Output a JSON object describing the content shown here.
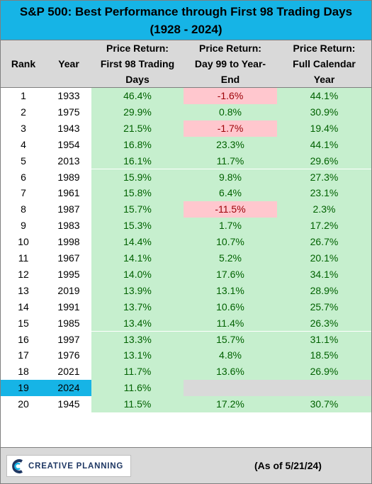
{
  "title_line1": "S&P 500: Best Performance through First 98 Trading Days",
  "title_line2": "(1928 - 2024)",
  "headers": {
    "rank": "Rank",
    "year": "Year",
    "p1": [
      "Price Return:",
      "First 98 Trading",
      "Days"
    ],
    "p2": [
      "Price Return:",
      "Day 99 to Year-",
      "End"
    ],
    "p3": [
      "Price Return:",
      "Full Calendar",
      "Year"
    ]
  },
  "colors": {
    "title_bg": "#16b4e6",
    "header_bg": "#d9d9d9",
    "positive_bg": "#c6efce",
    "positive_text": "#006100",
    "negative_bg": "#ffc7ce",
    "negative_text": "#9c0006",
    "highlight": "#16b4e6"
  },
  "chart_data": {
    "type": "table",
    "title": "S&P 500: Best Performance through First 98 Trading Days (1928 - 2024)",
    "columns": [
      "Rank",
      "Year",
      "Price Return: First 98 Trading Days",
      "Price Return: Day 99 to Year-End",
      "Price Return: Full Calendar Year"
    ],
    "rows": [
      {
        "rank": "1",
        "year": "1933",
        "p1": "46.4%",
        "p2": "-1.6%",
        "p3": "44.1%"
      },
      {
        "rank": "2",
        "year": "1975",
        "p1": "29.9%",
        "p2": "0.8%",
        "p3": "30.9%"
      },
      {
        "rank": "3",
        "year": "1943",
        "p1": "21.5%",
        "p2": "-1.7%",
        "p3": "19.4%"
      },
      {
        "rank": "4",
        "year": "1954",
        "p1": "16.8%",
        "p2": "23.3%",
        "p3": "44.1%"
      },
      {
        "rank": "5",
        "year": "2013",
        "p1": "16.1%",
        "p2": "11.7%",
        "p3": "29.6%"
      },
      {
        "rank": "6",
        "year": "1989",
        "p1": "15.9%",
        "p2": "9.8%",
        "p3": "27.3%"
      },
      {
        "rank": "7",
        "year": "1961",
        "p1": "15.8%",
        "p2": "6.4%",
        "p3": "23.1%"
      },
      {
        "rank": "8",
        "year": "1987",
        "p1": "15.7%",
        "p2": "-11.5%",
        "p3": "2.3%"
      },
      {
        "rank": "9",
        "year": "1983",
        "p1": "15.3%",
        "p2": "1.7%",
        "p3": "17.2%"
      },
      {
        "rank": "10",
        "year": "1998",
        "p1": "14.4%",
        "p2": "10.7%",
        "p3": "26.7%"
      },
      {
        "rank": "11",
        "year": "1967",
        "p1": "14.1%",
        "p2": "5.2%",
        "p3": "20.1%"
      },
      {
        "rank": "12",
        "year": "1995",
        "p1": "14.0%",
        "p2": "17.6%",
        "p3": "34.1%"
      },
      {
        "rank": "13",
        "year": "2019",
        "p1": "13.9%",
        "p2": "13.1%",
        "p3": "28.9%"
      },
      {
        "rank": "14",
        "year": "1991",
        "p1": "13.7%",
        "p2": "10.6%",
        "p3": "25.7%"
      },
      {
        "rank": "15",
        "year": "1985",
        "p1": "13.4%",
        "p2": "11.4%",
        "p3": "26.3%"
      },
      {
        "rank": "16",
        "year": "1997",
        "p1": "13.3%",
        "p2": "15.7%",
        "p3": "31.1%"
      },
      {
        "rank": "17",
        "year": "1976",
        "p1": "13.1%",
        "p2": "4.8%",
        "p3": "18.5%"
      },
      {
        "rank": "18",
        "year": "2021",
        "p1": "11.7%",
        "p2": "13.6%",
        "p3": "26.9%"
      },
      {
        "rank": "19",
        "year": "2024",
        "p1": "11.6%",
        "p2": "",
        "p3": "",
        "highlight": true
      },
      {
        "rank": "20",
        "year": "1945",
        "p1": "11.5%",
        "p2": "17.2%",
        "p3": "30.7%"
      }
    ]
  },
  "footer": {
    "logo_text": "CREATIVE PLANNING",
    "logo_icon": "creative-planning-logo-icon",
    "as_of": "(As of 5/21/24)"
  }
}
